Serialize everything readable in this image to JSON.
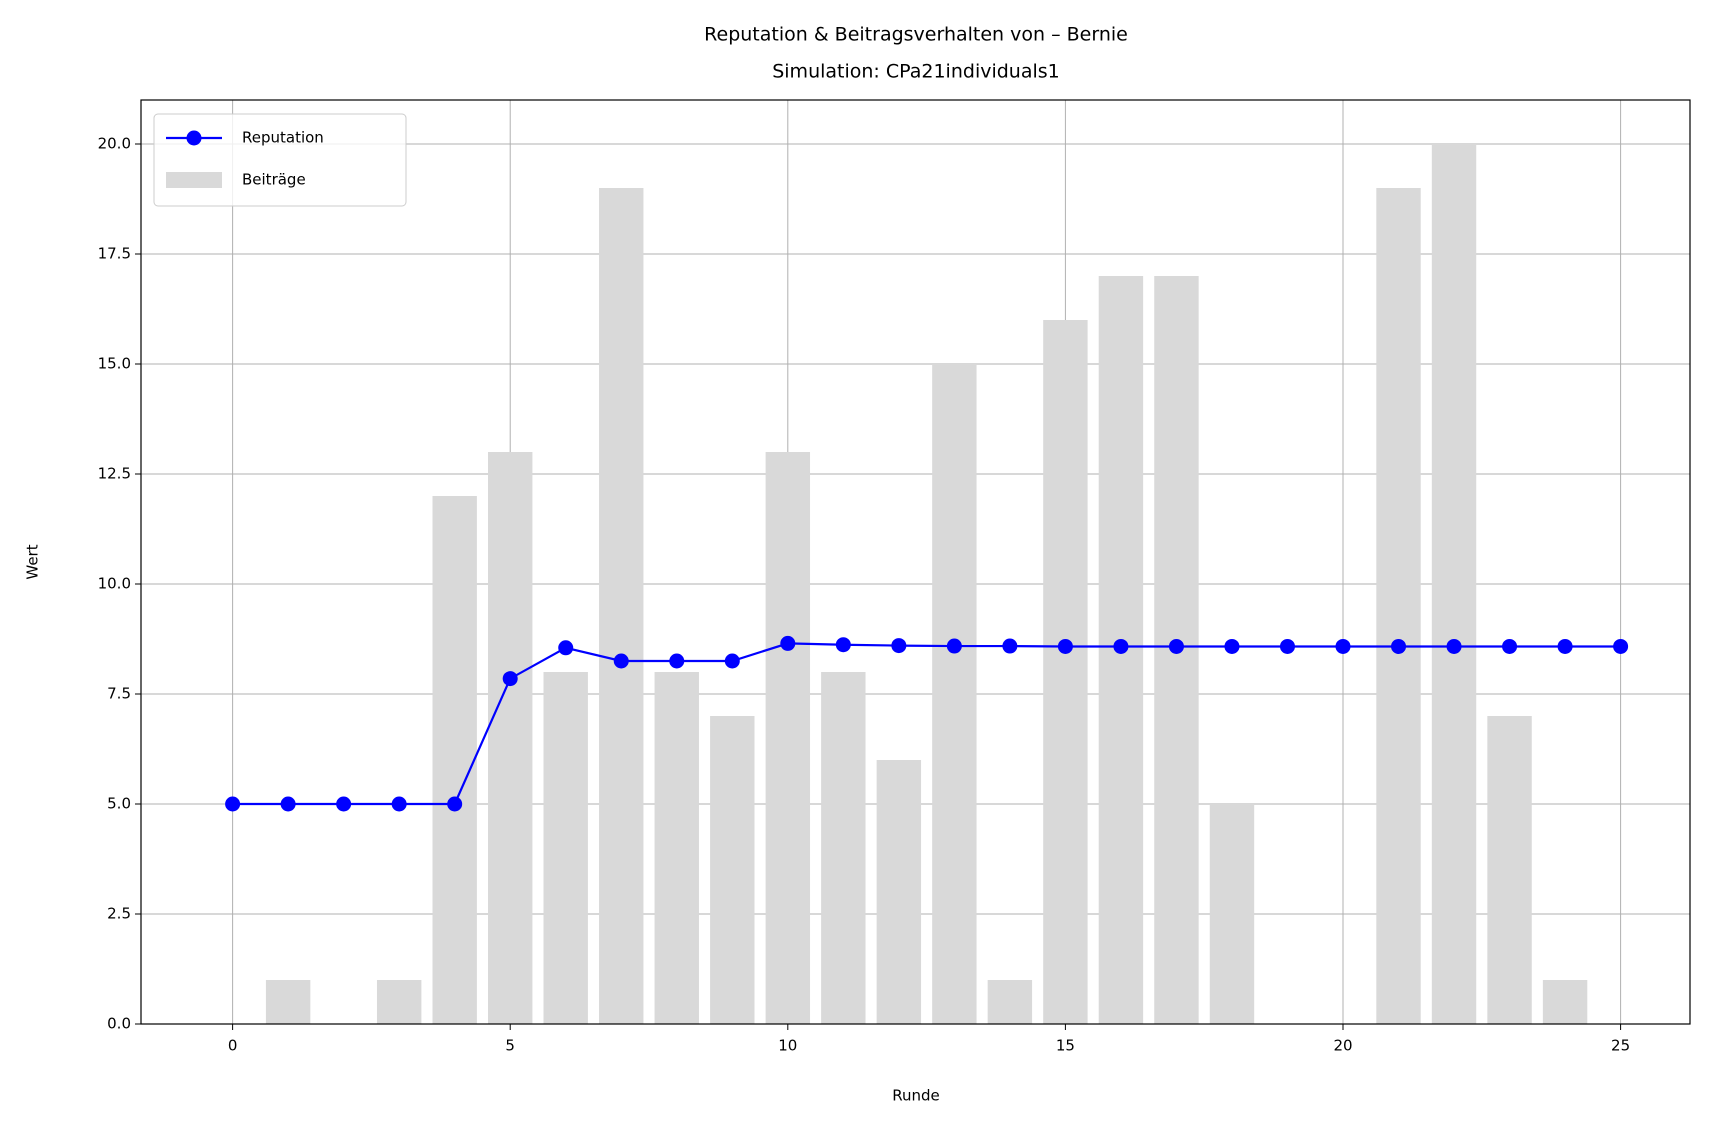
{
  "chart_data": {
    "type": "combo",
    "title": "Reputation & Beitragsverhalten von – Bernie",
    "subtitle": "Simulation: CPa21individuals1",
    "xlabel": "Runde",
    "ylabel": "Wert",
    "x": [
      0,
      1,
      2,
      3,
      4,
      5,
      6,
      7,
      8,
      9,
      10,
      11,
      12,
      13,
      14,
      15,
      16,
      17,
      18,
      19,
      20,
      21,
      22,
      23,
      24,
      25
    ],
    "series": [
      {
        "name": "Reputation",
        "type": "line",
        "color": "#0000ff",
        "values": [
          5,
          5,
          5,
          5,
          5,
          7.85,
          8.55,
          8.25,
          8.25,
          8.25,
          8.65,
          8.62,
          8.6,
          8.59,
          8.59,
          8.58,
          8.58,
          8.58,
          8.58,
          8.58,
          8.58,
          8.58,
          8.58,
          8.58,
          8.58,
          8.58
        ]
      },
      {
        "name": "Beiträge",
        "type": "bar",
        "color": "#d9d9d9",
        "values": [
          0,
          1,
          0,
          1,
          12,
          13,
          8,
          19,
          8,
          7,
          13,
          8,
          6,
          15,
          1,
          16,
          17,
          17,
          5,
          0,
          0,
          19,
          20,
          7,
          1,
          0
        ]
      }
    ],
    "xlim": [
      -1.65,
      26.25
    ],
    "xticks": [
      0,
      5,
      10,
      15,
      20,
      25
    ],
    "ylim": [
      0,
      21
    ],
    "yticks": [
      {
        "value": 0,
        "label": "0.0"
      },
      {
        "value": 2.5,
        "label": "2.5"
      },
      {
        "value": 5,
        "label": "5.0"
      },
      {
        "value": 7.5,
        "label": "7.5"
      },
      {
        "value": 10,
        "label": "10.0"
      },
      {
        "value": 12.5,
        "label": "12.5"
      },
      {
        "value": 15,
        "label": "15.0"
      },
      {
        "value": 17.5,
        "label": "17.5"
      },
      {
        "value": 20,
        "label": "20.0"
      }
    ],
    "grid": true,
    "legend": "upper left"
  }
}
